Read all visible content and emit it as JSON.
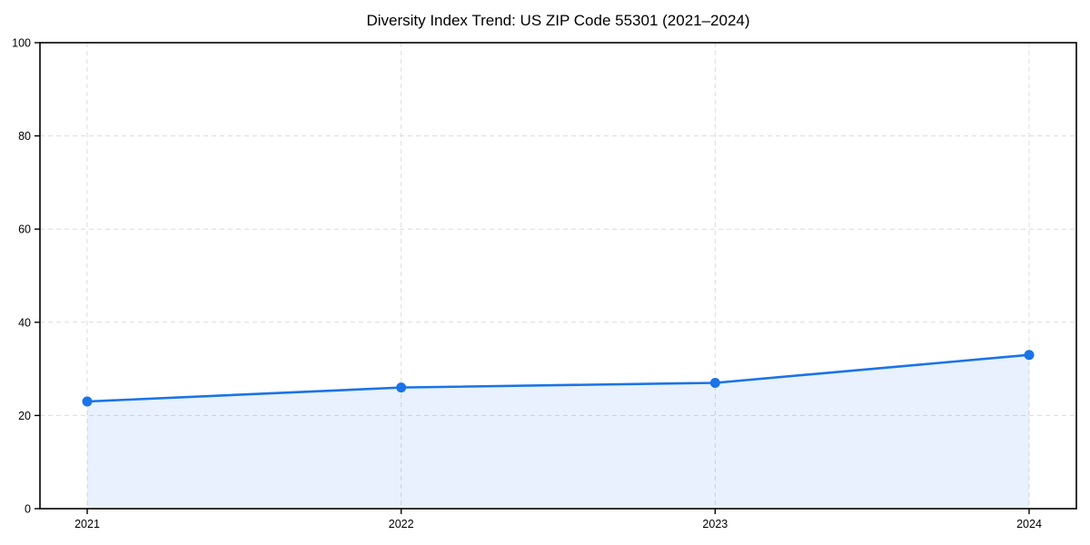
{
  "page": {
    "title": "Diversity Index Trend: US ZIP Code 55301 (2021–2024)"
  },
  "chart_data": {
    "type": "area",
    "title": "Diversity Index Trend: US ZIP Code 55301 (2021–2024)",
    "categories": [
      "2021",
      "2022",
      "2023",
      "2024"
    ],
    "series": [
      {
        "name": "Diversity Index",
        "values": [
          23,
          26,
          27,
          33
        ]
      }
    ],
    "xlabel": "",
    "ylabel": "",
    "ylim": [
      0,
      100
    ],
    "y_ticks": [
      0,
      20,
      40,
      60,
      80,
      100
    ],
    "grid": true,
    "grid_style": "dashed",
    "legend": "none",
    "colors": {
      "line": "#1a73e8",
      "marker": "#1a73e8",
      "area_fill": "rgba(26,115,232,0.10)",
      "grid": "#dcdcdc",
      "axis": "#000000",
      "text": "#000000",
      "background": "#ffffff"
    }
  }
}
